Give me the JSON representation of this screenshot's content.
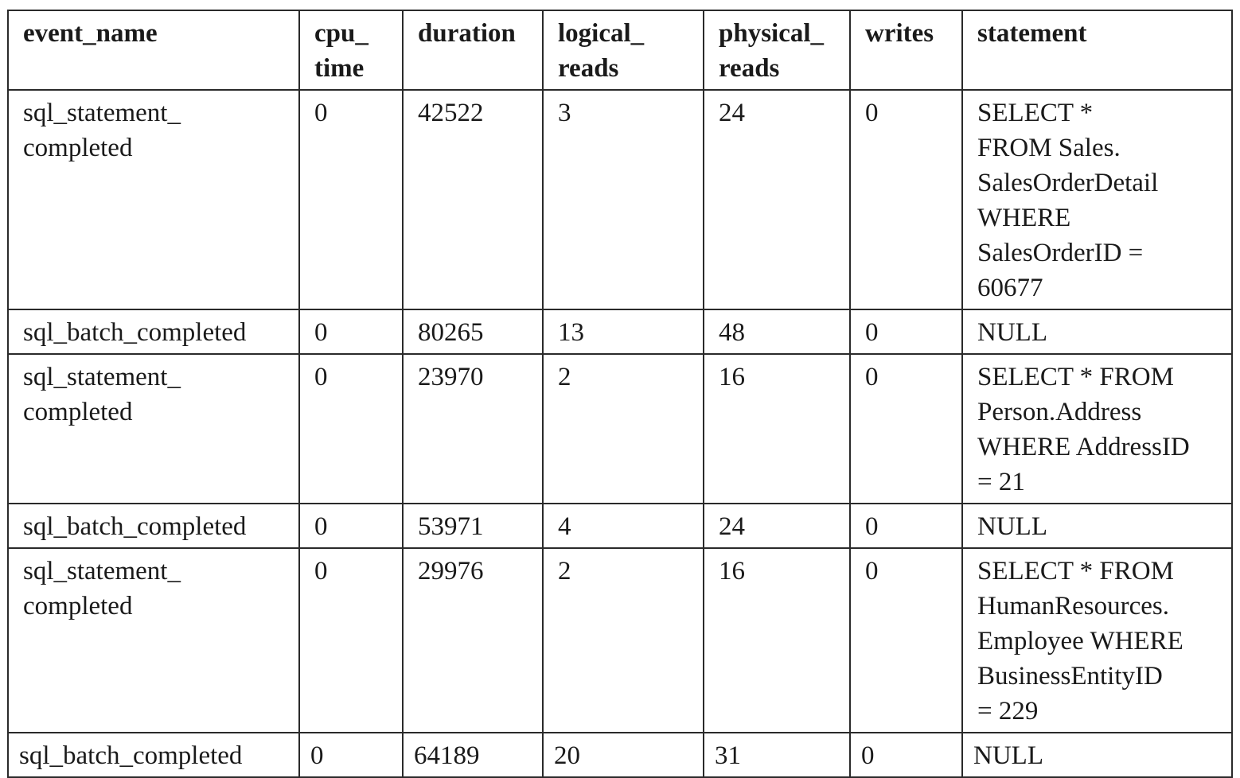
{
  "table": {
    "headers": [
      "event_name",
      "cpu_\ntime",
      "duration",
      "logical_\nreads",
      "physical_\nreads",
      "writes",
      "statement"
    ],
    "rows": [
      [
        "sql_statement_\ncompleted",
        "0",
        "42522",
        "3",
        "24",
        "0",
        "SELECT *\nFROM Sales.\nSalesOrderDetail\nWHERE\nSalesOrderID =\n60677"
      ],
      [
        "sql_batch_completed",
        "0",
        "80265",
        "13",
        "48",
        "0",
        "NULL"
      ],
      [
        "sql_statement_\ncompleted",
        "0",
        "23970",
        "2",
        "16",
        "0",
        "SELECT * FROM\nPerson.Address\nWHERE AddressID\n= 21"
      ],
      [
        "sql_batch_completed",
        "0",
        "53971",
        "4",
        "24",
        "0",
        "NULL"
      ],
      [
        "sql_statement_\ncompleted",
        "0",
        "29976",
        "2",
        "16",
        "0",
        "SELECT * FROM\nHumanResources.\nEmployee WHERE\nBusinessEntityID\n= 229"
      ],
      [
        "sql_batch_completed",
        "0",
        "64189",
        "20",
        "31",
        "0",
        "NULL"
      ]
    ]
  }
}
